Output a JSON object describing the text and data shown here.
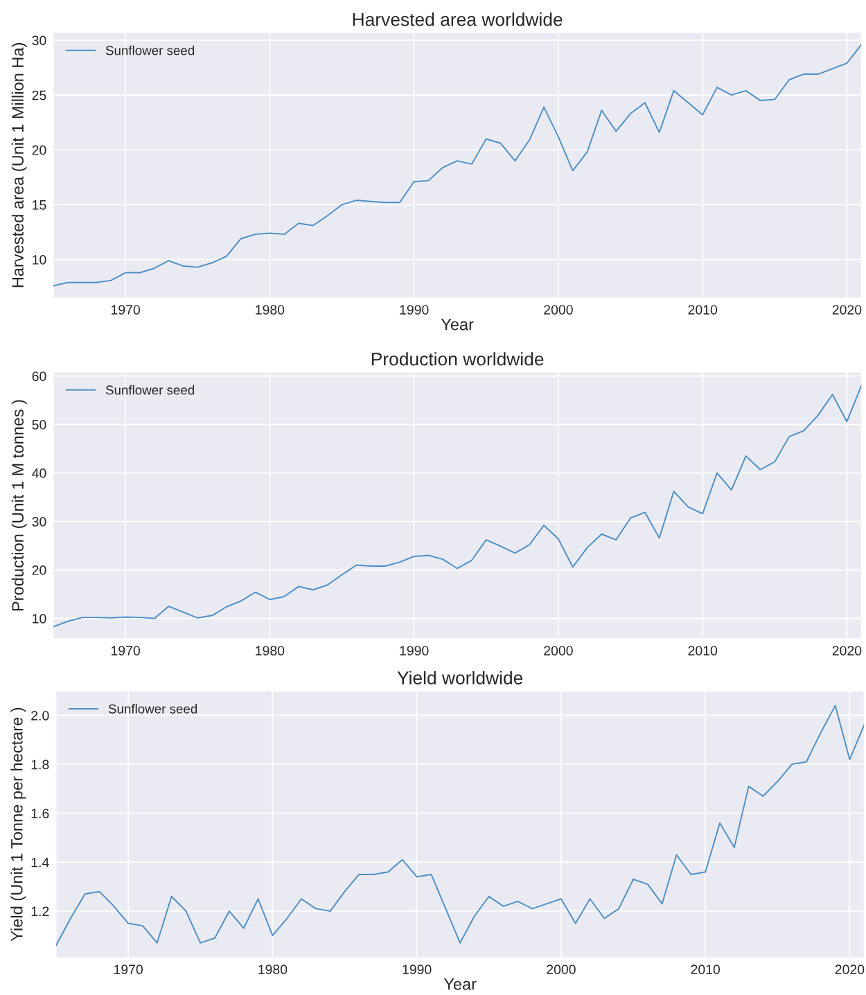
{
  "chart_data": [
    {
      "type": "line",
      "title": "Harvested area worldwide",
      "xlabel": "Year",
      "ylabel": "Harvested area (Unit 1 Million Ha)",
      "x": [
        1965,
        1966,
        1967,
        1968,
        1969,
        1970,
        1971,
        1972,
        1973,
        1974,
        1975,
        1976,
        1977,
        1978,
        1979,
        1980,
        1981,
        1982,
        1983,
        1984,
        1985,
        1986,
        1987,
        1988,
        1989,
        1990,
        1991,
        1992,
        1993,
        1994,
        1995,
        1996,
        1997,
        1998,
        1999,
        2000,
        2001,
        2002,
        2003,
        2004,
        2005,
        2006,
        2007,
        2008,
        2009,
        2010,
        2011,
        2012,
        2013,
        2014,
        2015,
        2016,
        2017,
        2018,
        2019,
        2020,
        2021
      ],
      "series": [
        {
          "name": "Sunflower seed",
          "color": "#4e8fc6",
          "values": [
            7.6,
            7.9,
            7.9,
            7.9,
            8.1,
            8.8,
            8.8,
            9.2,
            9.9,
            9.4,
            9.3,
            9.7,
            10.3,
            11.9,
            12.3,
            12.4,
            12.3,
            13.3,
            13.1,
            14.0,
            15.0,
            15.4,
            15.3,
            15.2,
            15.2,
            17.1,
            17.2,
            18.4,
            19.0,
            18.7,
            21.0,
            20.6,
            19.0,
            20.9,
            23.9,
            21.2,
            18.1,
            19.8,
            23.6,
            21.7,
            23.3,
            24.3,
            21.6,
            25.4,
            24.3,
            23.2,
            25.7,
            25.0,
            25.4,
            24.5,
            24.6,
            26.4,
            26.9,
            26.9,
            27.4,
            27.9,
            29.6
          ]
        }
      ],
      "xlim": [
        1965,
        2021
      ],
      "ylim": [
        6.5,
        30.7
      ],
      "xticks": [
        1970,
        1980,
        1990,
        2000,
        2010,
        2020
      ],
      "yticks": [
        10,
        15,
        20,
        25,
        30
      ],
      "grid": true,
      "legend": "top left"
    },
    {
      "type": "line",
      "title": "Production worldwide",
      "ylabel": "Production (Unit 1 M tonnes )",
      "x": [
        1965,
        1966,
        1967,
        1968,
        1969,
        1970,
        1971,
        1972,
        1973,
        1974,
        1975,
        1976,
        1977,
        1978,
        1979,
        1980,
        1981,
        1982,
        1983,
        1984,
        1985,
        1986,
        1987,
        1988,
        1989,
        1990,
        1991,
        1992,
        1993,
        1994,
        1995,
        1996,
        1997,
        1998,
        1999,
        2000,
        2001,
        2002,
        2003,
        2004,
        2005,
        2006,
        2007,
        2008,
        2009,
        2010,
        2011,
        2012,
        2013,
        2014,
        2015,
        2016,
        2017,
        2018,
        2019,
        2020,
        2021
      ],
      "series": [
        {
          "name": "Sunflower seed",
          "color": "#4e8fc6",
          "values": [
            8.3,
            9.4,
            10.2,
            10.2,
            10.1,
            10.3,
            10.2,
            10.0,
            12.5,
            11.3,
            10.1,
            10.6,
            12.4,
            13.6,
            15.4,
            13.9,
            14.5,
            16.6,
            15.9,
            16.9,
            19.0,
            21.0,
            20.8,
            20.8,
            21.6,
            22.8,
            23.0,
            22.2,
            20.3,
            22.0,
            26.2,
            24.9,
            23.5,
            25.2,
            29.2,
            26.4,
            20.6,
            24.6,
            27.4,
            26.2,
            30.7,
            31.9,
            26.6,
            36.2,
            33.0,
            31.6,
            40.0,
            36.5,
            43.5,
            40.7,
            42.3,
            47.5,
            48.7,
            51.9,
            56.2,
            50.6,
            58.0
          ]
        }
      ],
      "xlim": [
        1965,
        2021
      ],
      "ylim": [
        5.8,
        60.8
      ],
      "xticks": [
        1970,
        1980,
        1990,
        2000,
        2010,
        2020
      ],
      "yticks": [
        10,
        20,
        30,
        40,
        50,
        60
      ],
      "grid": true,
      "legend": "top left"
    },
    {
      "type": "line",
      "title": "Yield worldwide",
      "xlabel": "Year",
      "ylabel": "Yield (Unit 1 Tonne per hectare )",
      "x": [
        1965,
        1966,
        1967,
        1968,
        1969,
        1970,
        1971,
        1972,
        1973,
        1974,
        1975,
        1976,
        1977,
        1978,
        1979,
        1980,
        1981,
        1982,
        1983,
        1984,
        1985,
        1986,
        1987,
        1988,
        1989,
        1990,
        1991,
        1992,
        1993,
        1994,
        1995,
        1996,
        1997,
        1998,
        1999,
        2000,
        2001,
        2002,
        2003,
        2004,
        2005,
        2006,
        2007,
        2008,
        2009,
        2010,
        2011,
        2012,
        2013,
        2014,
        2015,
        2016,
        2017,
        2018,
        2019,
        2020,
        2021
      ],
      "series": [
        {
          "name": "Sunflower seed",
          "color": "#4e8fc6",
          "values": [
            1.06,
            1.17,
            1.27,
            1.28,
            1.22,
            1.15,
            1.14,
            1.07,
            1.26,
            1.2,
            1.07,
            1.09,
            1.2,
            1.13,
            1.25,
            1.1,
            1.17,
            1.25,
            1.21,
            1.2,
            1.28,
            1.35,
            1.35,
            1.36,
            1.41,
            1.34,
            1.35,
            1.21,
            1.07,
            1.18,
            1.26,
            1.22,
            1.24,
            1.21,
            1.23,
            1.25,
            1.15,
            1.25,
            1.17,
            1.21,
            1.33,
            1.31,
            1.23,
            1.43,
            1.35,
            1.36,
            1.56,
            1.46,
            1.71,
            1.67,
            1.73,
            1.8,
            1.81,
            1.93,
            2.04,
            1.82,
            1.96
          ]
        }
      ],
      "xlim": [
        1965,
        2021
      ],
      "ylim": [
        1.01,
        2.1
      ],
      "xticks": [
        1970,
        1980,
        1990,
        2000,
        2010,
        2020
      ],
      "yticks": [
        1.2,
        1.4,
        1.6,
        1.8,
        {
          "value": 2,
          "label": "2.0"
        }
      ],
      "grid": true,
      "legend": "top left"
    }
  ]
}
